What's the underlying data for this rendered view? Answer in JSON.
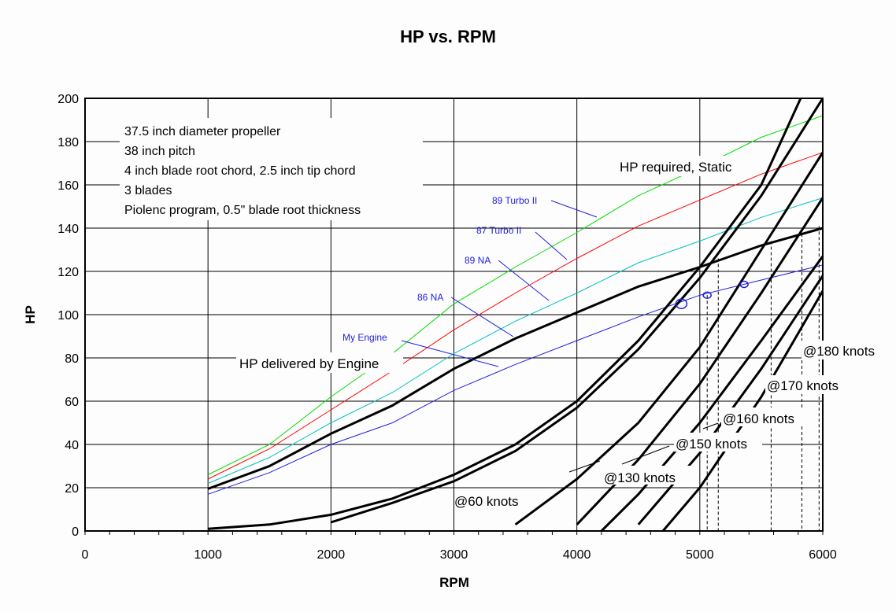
{
  "chart_data": {
    "type": "line",
    "title": "HP vs. RPM",
    "xlabel": "RPM",
    "ylabel": "HP",
    "xlim": [
      0,
      6000
    ],
    "ylim": [
      0,
      200
    ],
    "xticks": [
      0,
      1000,
      2000,
      3000,
      4000,
      5000,
      6000
    ],
    "yticks": [
      0,
      20,
      40,
      60,
      80,
      100,
      120,
      140,
      160,
      180,
      200
    ],
    "grid": true,
    "notes": [
      "37.5 inch diameter propeller",
      "38 inch pitch",
      "4 inch blade root chord, 2.5 inch tip chord",
      "3 blades",
      "Piolenc program, 0.5\" blade root thickness"
    ],
    "engine_series": [
      {
        "name": "89 Turbo II",
        "color": "#00dd00",
        "x": [
          1000,
          1500,
          2000,
          2500,
          3000,
          3500,
          4000,
          4500,
          5000,
          5500,
          6000
        ],
        "y": [
          26,
          40,
          62,
          82,
          105,
          122,
          138,
          155,
          168,
          182,
          192
        ]
      },
      {
        "name": "87 Turbo II",
        "color": "#ff0000",
        "x": [
          1000,
          1500,
          2000,
          2500,
          3000,
          3500,
          4000,
          4500,
          5000,
          5500,
          6000
        ],
        "y": [
          24,
          38,
          56,
          74,
          93,
          110,
          126,
          141,
          153,
          165,
          175
        ]
      },
      {
        "name": "89 NA",
        "color": "#00c0c0",
        "x": [
          1000,
          1500,
          2000,
          2500,
          3000,
          3500,
          4000,
          4500,
          5000,
          5500,
          6000
        ],
        "y": [
          22,
          34,
          50,
          64,
          82,
          97,
          110,
          124,
          134,
          145,
          154
        ]
      },
      {
        "name": "My Engine",
        "color": "#2020e0",
        "x": [
          1000,
          1500,
          2000,
          2500,
          3000,
          3500,
          4000,
          4500,
          5000,
          5500,
          6000
        ],
        "y": [
          17,
          27,
          40,
          50,
          65,
          77,
          88,
          99,
          109,
          116,
          123
        ]
      },
      {
        "name": "86 NA",
        "color": "#000000",
        "x": [
          1000,
          1500,
          2000,
          2500,
          3000,
          3500,
          4000,
          4500,
          5000,
          5500,
          6000
        ],
        "y": [
          19.5,
          30,
          45,
          58,
          75,
          89,
          101,
          113,
          122,
          132,
          140
        ]
      }
    ],
    "prop_series": [
      {
        "name": "HP required, Static",
        "x": [
          1000,
          1500,
          2000,
          2500,
          3000,
          3500,
          4000,
          4500,
          5000,
          5500,
          5820
        ],
        "y": [
          1,
          3,
          7.5,
          15,
          26,
          40,
          60,
          88,
          122,
          160,
          200
        ]
      },
      {
        "name": "HP required, Static (b)",
        "x": [
          2000,
          2500,
          3000,
          3500,
          4000,
          4500,
          5000,
          5500,
          6000
        ],
        "y": [
          4,
          13,
          23,
          37,
          57,
          84,
          117,
          155,
          200
        ]
      },
      {
        "name": "@60 knots",
        "x": [
          3500,
          4000,
          4500,
          5000,
          5500,
          6000
        ],
        "y": [
          3,
          24,
          50,
          85,
          130,
          175
        ]
      },
      {
        "name": "@130 knots",
        "x": [
          4000,
          4500,
          5000,
          5500,
          6000
        ],
        "y": [
          3,
          33,
          68,
          110,
          154
        ]
      },
      {
        "name": "@150 knots",
        "x": [
          4200,
          4500,
          5000,
          5500,
          6000
        ],
        "y": [
          0,
          17,
          50,
          88,
          127
        ]
      },
      {
        "name": "@160 knots",
        "x": [
          4500,
          5000,
          5500,
          6000
        ],
        "y": [
          3,
          36,
          75,
          118
        ]
      },
      {
        "name": "@170 knots",
        "x": [
          4700,
          5000,
          5500,
          6000
        ],
        "y": [
          0,
          20,
          62,
          111
        ]
      }
    ],
    "operating_points": [
      {
        "x": 4850,
        "y": 105
      },
      {
        "x": 5060,
        "y": 109
      },
      {
        "x": 5360,
        "y": 114
      }
    ],
    "intersections": [
      {
        "x": 5060,
        "y": 109
      },
      {
        "x": 5150,
        "y": 126
      },
      {
        "x": 5580,
        "y": 134
      },
      {
        "x": 5830,
        "y": 140
      },
      {
        "x": 5970,
        "y": 141
      }
    ],
    "annotations": {
      "static": "HP required, Static",
      "delivered": "HP delivered by Engine",
      "k60": "@60 knots",
      "k130": "@130 knots",
      "k150": "@150 knots",
      "k160": "@160 knots",
      "k170": "@170 knots",
      "k180": "@180 knots",
      "t89": "89 Turbo II",
      "t87": "87 Turbo II",
      "na89": "89 NA",
      "na86": "86 NA",
      "mine": "My Engine"
    }
  }
}
